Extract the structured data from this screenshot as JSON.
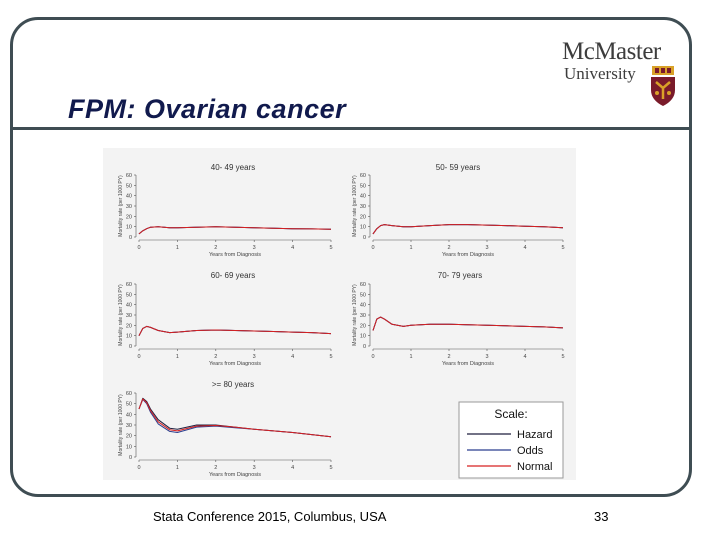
{
  "slide": {
    "title": "FPM: Ovarian cancer",
    "footer": "Stata Conference 2015, Columbus, USA",
    "page_number": "33"
  },
  "logo": {
    "name": "McMaster",
    "subname": "University",
    "colors": {
      "maroon": "#7a1b2a",
      "gold": "#d9a128"
    }
  },
  "colors": {
    "frame": "#3f4d53",
    "title": "#111a4d",
    "hazard": "#1f1f3f",
    "odds": "#2a3f8f",
    "normal": "#d62020"
  },
  "chart_data": [
    {
      "type": "line",
      "title": "40- 49 years",
      "xlabel": "Years from Diagnosis",
      "ylabel": "Mortality rate (per 1000 PY)",
      "xlim": [
        0,
        5
      ],
      "ylim": [
        0,
        60
      ],
      "xticks": [
        0,
        1,
        2,
        3,
        4,
        5
      ],
      "yticks": [
        0,
        10,
        20,
        30,
        40,
        50,
        60
      ],
      "x": [
        0,
        0.1,
        0.2,
        0.3,
        0.5,
        0.8,
        1,
        1.5,
        2,
        2.5,
        3,
        3.5,
        4,
        4.5,
        5
      ],
      "series": [
        {
          "name": "Hazard",
          "values": [
            3,
            6,
            8,
            9.5,
            10,
            9,
            9,
            9.5,
            10,
            9.5,
            9,
            8.5,
            8,
            7.8,
            7.5
          ]
        },
        {
          "name": "Odds",
          "values": [
            3,
            6,
            8,
            9.5,
            10,
            9,
            9,
            9.5,
            10,
            9.5,
            9,
            8.5,
            8,
            7.8,
            7.5
          ]
        },
        {
          "name": "Normal",
          "values": [
            3,
            6,
            8,
            9.5,
            10,
            9,
            9,
            9.5,
            10,
            9.5,
            9,
            8.5,
            8,
            7.8,
            7.5
          ]
        }
      ]
    },
    {
      "type": "line",
      "title": "50- 59 years",
      "xlabel": "Years from Diagnosis",
      "ylabel": "Mortality rate (per 1000 PY)",
      "xlim": [
        0,
        5
      ],
      "ylim": [
        0,
        60
      ],
      "xticks": [
        0,
        1,
        2,
        3,
        4,
        5
      ],
      "yticks": [
        0,
        10,
        20,
        30,
        40,
        50,
        60
      ],
      "x": [
        0,
        0.1,
        0.2,
        0.3,
        0.5,
        0.8,
        1,
        1.5,
        2,
        2.5,
        3,
        3.5,
        4,
        4.5,
        5
      ],
      "series": [
        {
          "name": "Hazard",
          "values": [
            3,
            8,
            11,
            12,
            11,
            10,
            10,
            11,
            12,
            12,
            11.5,
            11,
            10.5,
            10,
            9
          ]
        },
        {
          "name": "Odds",
          "values": [
            3,
            8,
            11,
            12,
            11,
            10,
            10,
            11,
            12,
            12,
            11.5,
            11,
            10.5,
            10,
            9
          ]
        },
        {
          "name": "Normal",
          "values": [
            3,
            8,
            11,
            12,
            11,
            10,
            10,
            11,
            12,
            12,
            11.5,
            11,
            10.5,
            10,
            9
          ]
        }
      ]
    },
    {
      "type": "line",
      "title": "60- 69 years",
      "xlabel": "Years from Diagnosis",
      "ylabel": "Mortality rate (per 1000 PY)",
      "xlim": [
        0,
        5
      ],
      "ylim": [
        0,
        60
      ],
      "xticks": [
        0,
        1,
        2,
        3,
        4,
        5
      ],
      "yticks": [
        0,
        10,
        20,
        30,
        40,
        50,
        60
      ],
      "x": [
        0,
        0.1,
        0.2,
        0.3,
        0.5,
        0.8,
        1,
        1.5,
        2,
        2.5,
        3,
        3.5,
        4,
        4.5,
        5
      ],
      "series": [
        {
          "name": "Hazard",
          "values": [
            10,
            17,
            19,
            18,
            15,
            13,
            13.5,
            15,
            15.5,
            15,
            14.5,
            14,
            13.5,
            13,
            12
          ]
        },
        {
          "name": "Odds",
          "values": [
            10,
            17,
            19,
            18,
            15,
            13,
            13.5,
            15,
            15.5,
            15,
            14.5,
            14,
            13.5,
            13,
            12
          ]
        },
        {
          "name": "Normal",
          "values": [
            10,
            17,
            19,
            18,
            15,
            13,
            13.5,
            15,
            15.5,
            15,
            14.5,
            14,
            13.5,
            13,
            12
          ]
        }
      ]
    },
    {
      "type": "line",
      "title": "70- 79 years",
      "xlabel": "Years from Diagnosis",
      "ylabel": "Mortality rate (per 1000 PY)",
      "xlim": [
        0,
        5
      ],
      "ylim": [
        0,
        60
      ],
      "xticks": [
        0,
        1,
        2,
        3,
        4,
        5
      ],
      "yticks": [
        0,
        10,
        20,
        30,
        40,
        50,
        60
      ],
      "x": [
        0,
        0.1,
        0.2,
        0.3,
        0.5,
        0.8,
        1,
        1.5,
        2,
        2.5,
        3,
        3.5,
        4,
        4.5,
        5
      ],
      "series": [
        {
          "name": "Hazard",
          "values": [
            15,
            26,
            28,
            26,
            21,
            19,
            20,
            21,
            21,
            20.5,
            20,
            19.5,
            19,
            18.5,
            17.5
          ]
        },
        {
          "name": "Odds",
          "values": [
            15,
            26,
            28,
            26,
            21,
            19,
            20,
            21,
            21,
            20.5,
            20,
            19.5,
            19,
            18.5,
            17.5
          ]
        },
        {
          "name": "Normal",
          "values": [
            15,
            26,
            28,
            26,
            21,
            19,
            20,
            21,
            21,
            20.5,
            20,
            19.5,
            19,
            18.5,
            17.5
          ]
        }
      ]
    },
    {
      "type": "line",
      "title": ">= 80 years",
      "xlabel": "Years from Diagnosis",
      "ylabel": "Mortality rate (per 1000 PY)",
      "xlim": [
        0,
        5
      ],
      "ylim": [
        0,
        60
      ],
      "xticks": [
        0,
        1,
        2,
        3,
        4,
        5
      ],
      "yticks": [
        0,
        10,
        20,
        30,
        40,
        50,
        60
      ],
      "x": [
        0,
        0.1,
        0.2,
        0.3,
        0.5,
        0.8,
        1,
        1.5,
        2,
        2.5,
        3,
        3.5,
        4,
        4.5,
        5
      ],
      "series": [
        {
          "name": "Hazard",
          "values": [
            45,
            55,
            52,
            45,
            35,
            27,
            26,
            30,
            30,
            28,
            26,
            24.5,
            23,
            21,
            19
          ]
        },
        {
          "name": "Odds",
          "values": [
            45,
            54,
            50,
            42,
            31,
            24,
            23,
            28,
            29,
            27.5,
            26,
            24.5,
            23,
            21,
            19
          ]
        },
        {
          "name": "Normal",
          "values": [
            45,
            54.5,
            51,
            43.5,
            33,
            25.5,
            24.5,
            29,
            29.5,
            28,
            26,
            24.5,
            23,
            21,
            19
          ]
        }
      ]
    }
  ],
  "legend": {
    "title": "Scale:",
    "entries": [
      "Hazard",
      "Odds",
      "Normal"
    ]
  }
}
